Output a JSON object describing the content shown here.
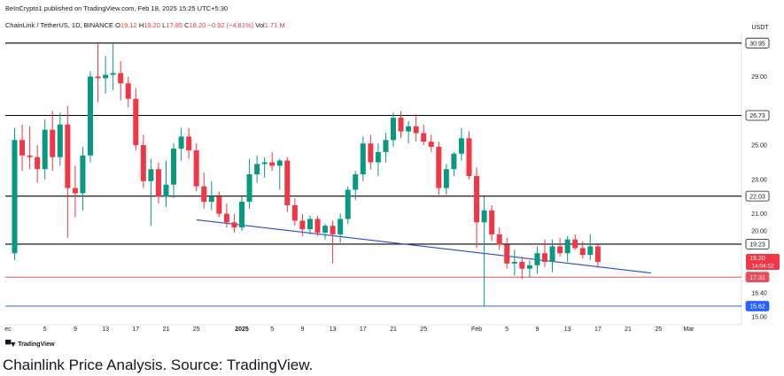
{
  "header": {
    "publish_text": "BeInCrypto1 published on TradingView.com, Feb 18, 2025 15:25 UTC+5:30",
    "symbol": "ChainLink / TetherUS, 1D, BINANCE",
    "o_label": "O",
    "o_value": "19.12",
    "h_label": "H",
    "h_value": "19.20",
    "l_label": "L",
    "l_value": "17.85",
    "c_label": "C",
    "c_value": "18.20",
    "change": "−0.92 (−4.81%)",
    "vol_label": "Vol",
    "vol_value": "1.71 M"
  },
  "currency": "USDT",
  "logo_text": "TradingView",
  "caption": "Chainlink Price Analysis. Source: TradingView.",
  "colors": {
    "up": "#089981",
    "down": "#f23645",
    "level_line": "#000000",
    "support_red": "#e84d5b",
    "support_blue": "#2962ff",
    "trendline": "#2447d8",
    "axis_text": "#131722"
  },
  "chart_data": {
    "type": "candlestick",
    "ylim": [
      15.0,
      31.5
    ],
    "y_ticks": [
      {
        "label": "29.00",
        "value": 29.0
      },
      {
        "label": "25.00",
        "value": 25.0
      },
      {
        "label": "23.00",
        "value": 23.0
      },
      {
        "label": "21.00",
        "value": 21.0
      },
      {
        "label": "20.00",
        "value": 20.0
      },
      {
        "label": "16.40",
        "value": 16.4
      },
      {
        "label": "15.00",
        "value": 15.0
      }
    ],
    "x_ticks": [
      {
        "label": "ec",
        "day": -1,
        "bold": false
      },
      {
        "label": "5",
        "day": 4,
        "bold": false
      },
      {
        "label": "9",
        "day": 8,
        "bold": false
      },
      {
        "label": "13",
        "day": 12,
        "bold": false
      },
      {
        "label": "17",
        "day": 16,
        "bold": false
      },
      {
        "label": "21",
        "day": 20,
        "bold": false
      },
      {
        "label": "25",
        "day": 24,
        "bold": false
      },
      {
        "label": "2025",
        "day": 30,
        "bold": true
      },
      {
        "label": "5",
        "day": 34,
        "bold": false
      },
      {
        "label": "9",
        "day": 38,
        "bold": false
      },
      {
        "label": "13",
        "day": 42,
        "bold": false
      },
      {
        "label": "17",
        "day": 46,
        "bold": false
      },
      {
        "label": "21",
        "day": 50,
        "bold": false
      },
      {
        "label": "25",
        "day": 54,
        "bold": false
      },
      {
        "label": "Feb",
        "day": 61,
        "bold": false
      },
      {
        "label": "5",
        "day": 65,
        "bold": false
      },
      {
        "label": "9",
        "day": 69,
        "bold": false
      },
      {
        "label": "13",
        "day": 73,
        "bold": false
      },
      {
        "label": "17",
        "day": 77,
        "bold": false
      },
      {
        "label": "21",
        "day": 81,
        "bold": false
      },
      {
        "label": "25",
        "day": 85,
        "bold": false
      },
      {
        "label": "Mar",
        "day": 89,
        "bold": false
      }
    ],
    "levels": [
      {
        "name": "level-30-95",
        "label": "30.95",
        "value": 30.95,
        "color": "#000000",
        "tag": "black"
      },
      {
        "name": "level-26-73",
        "label": "26.73",
        "value": 26.73,
        "color": "#000000",
        "tag": "black"
      },
      {
        "name": "level-22-03",
        "label": "22.03",
        "value": 22.03,
        "color": "#000000",
        "tag": "black"
      },
      {
        "name": "level-19-23",
        "label": "19.23",
        "value": 19.23,
        "color": "#000000",
        "tag": "black"
      },
      {
        "name": "level-17-31",
        "label": "17.31",
        "value": 17.31,
        "color": "#e84d5b",
        "tag": "red"
      },
      {
        "name": "level-15-62",
        "label": "15.62",
        "value": 15.62,
        "color": "#2962ff",
        "tag": "blue"
      }
    ],
    "price_tag": {
      "price": "18.20",
      "countdown": "14:04:52",
      "value": 18.2
    },
    "trendline": {
      "start_day": 24,
      "start_value": 20.65,
      "end_day": 84,
      "end_value": 17.55
    },
    "candles": [
      {
        "d": 0,
        "o": 18.7,
        "h": 26.0,
        "l": 18.3,
        "c": 25.3
      },
      {
        "d": 1,
        "o": 25.3,
        "h": 26.2,
        "l": 23.5,
        "c": 24.4
      },
      {
        "d": 2,
        "o": 24.4,
        "h": 26.1,
        "l": 23.6,
        "c": 24.3
      },
      {
        "d": 3,
        "o": 24.3,
        "h": 25.0,
        "l": 22.8,
        "c": 23.6
      },
      {
        "d": 4,
        "o": 23.6,
        "h": 26.5,
        "l": 23.0,
        "c": 25.9
      },
      {
        "d": 5,
        "o": 25.9,
        "h": 27.0,
        "l": 23.5,
        "c": 24.3
      },
      {
        "d": 6,
        "o": 24.3,
        "h": 26.9,
        "l": 23.8,
        "c": 26.2
      },
      {
        "d": 7,
        "o": 26.2,
        "h": 27.3,
        "l": 19.6,
        "c": 22.5
      },
      {
        "d": 8,
        "o": 22.5,
        "h": 23.8,
        "l": 20.8,
        "c": 22.2
      },
      {
        "d": 9,
        "o": 22.2,
        "h": 24.9,
        "l": 21.2,
        "c": 24.4
      },
      {
        "d": 10,
        "o": 24.4,
        "h": 29.3,
        "l": 24.0,
        "c": 29.0
      },
      {
        "d": 11,
        "o": 29.0,
        "h": 30.9,
        "l": 27.5,
        "c": 28.9
      },
      {
        "d": 12,
        "o": 28.9,
        "h": 30.2,
        "l": 28.0,
        "c": 29.1
      },
      {
        "d": 13,
        "o": 29.1,
        "h": 30.9,
        "l": 28.2,
        "c": 29.2
      },
      {
        "d": 14,
        "o": 29.2,
        "h": 29.9,
        "l": 27.6,
        "c": 28.6
      },
      {
        "d": 15,
        "o": 28.6,
        "h": 29.0,
        "l": 27.2,
        "c": 27.7
      },
      {
        "d": 16,
        "o": 27.7,
        "h": 28.3,
        "l": 24.7,
        "c": 25.0
      },
      {
        "d": 17,
        "o": 25.0,
        "h": 25.6,
        "l": 22.5,
        "c": 22.9
      },
      {
        "d": 18,
        "o": 22.9,
        "h": 24.2,
        "l": 20.3,
        "c": 23.6
      },
      {
        "d": 19,
        "o": 23.6,
        "h": 24.0,
        "l": 21.6,
        "c": 22.0
      },
      {
        "d": 20,
        "o": 22.0,
        "h": 24.1,
        "l": 21.4,
        "c": 22.7
      },
      {
        "d": 21,
        "o": 22.7,
        "h": 25.1,
        "l": 21.9,
        "c": 24.8
      },
      {
        "d": 22,
        "o": 24.8,
        "h": 26.0,
        "l": 24.1,
        "c": 25.5
      },
      {
        "d": 23,
        "o": 25.5,
        "h": 26.0,
        "l": 24.2,
        "c": 24.7
      },
      {
        "d": 24,
        "o": 24.7,
        "h": 25.1,
        "l": 22.3,
        "c": 22.6
      },
      {
        "d": 25,
        "o": 22.6,
        "h": 23.4,
        "l": 21.3,
        "c": 21.7
      },
      {
        "d": 26,
        "o": 21.7,
        "h": 22.9,
        "l": 21.2,
        "c": 22.0
      },
      {
        "d": 27,
        "o": 22.0,
        "h": 22.3,
        "l": 20.8,
        "c": 21.0
      },
      {
        "d": 28,
        "o": 21.0,
        "h": 21.6,
        "l": 20.2,
        "c": 20.5
      },
      {
        "d": 29,
        "o": 20.5,
        "h": 21.0,
        "l": 19.9,
        "c": 20.2
      },
      {
        "d": 30,
        "o": 20.2,
        "h": 22.0,
        "l": 20.0,
        "c": 21.7
      },
      {
        "d": 31,
        "o": 21.7,
        "h": 24.2,
        "l": 21.3,
        "c": 23.3
      },
      {
        "d": 32,
        "o": 23.3,
        "h": 24.4,
        "l": 22.8,
        "c": 23.9
      },
      {
        "d": 33,
        "o": 23.9,
        "h": 24.3,
        "l": 23.1,
        "c": 24.0
      },
      {
        "d": 34,
        "o": 24.0,
        "h": 24.6,
        "l": 23.5,
        "c": 23.8
      },
      {
        "d": 35,
        "o": 23.8,
        "h": 24.2,
        "l": 22.4,
        "c": 24.1
      },
      {
        "d": 36,
        "o": 24.1,
        "h": 24.3,
        "l": 21.1,
        "c": 21.5
      },
      {
        "d": 37,
        "o": 21.5,
        "h": 21.9,
        "l": 20.3,
        "c": 20.6
      },
      {
        "d": 38,
        "o": 20.6,
        "h": 21.0,
        "l": 19.7,
        "c": 20.1
      },
      {
        "d": 39,
        "o": 20.1,
        "h": 20.9,
        "l": 19.8,
        "c": 20.7
      },
      {
        "d": 40,
        "o": 20.7,
        "h": 20.9,
        "l": 19.7,
        "c": 19.9
      },
      {
        "d": 41,
        "o": 19.9,
        "h": 20.4,
        "l": 19.5,
        "c": 20.3
      },
      {
        "d": 42,
        "o": 20.3,
        "h": 20.6,
        "l": 18.1,
        "c": 19.8
      },
      {
        "d": 43,
        "o": 19.8,
        "h": 21.0,
        "l": 19.3,
        "c": 20.7
      },
      {
        "d": 44,
        "o": 20.7,
        "h": 22.6,
        "l": 20.4,
        "c": 22.4
      },
      {
        "d": 45,
        "o": 22.4,
        "h": 23.5,
        "l": 21.8,
        "c": 23.3
      },
      {
        "d": 46,
        "o": 23.3,
        "h": 25.5,
        "l": 22.9,
        "c": 25.1
      },
      {
        "d": 47,
        "o": 25.1,
        "h": 25.6,
        "l": 23.6,
        "c": 24.0
      },
      {
        "d": 48,
        "o": 24.0,
        "h": 25.1,
        "l": 23.2,
        "c": 24.6
      },
      {
        "d": 49,
        "o": 24.6,
        "h": 25.7,
        "l": 24.0,
        "c": 25.3
      },
      {
        "d": 50,
        "o": 25.3,
        "h": 26.9,
        "l": 24.9,
        "c": 26.6
      },
      {
        "d": 51,
        "o": 26.6,
        "h": 27.0,
        "l": 25.4,
        "c": 25.8
      },
      {
        "d": 52,
        "o": 25.8,
        "h": 26.4,
        "l": 25.1,
        "c": 26.1
      },
      {
        "d": 53,
        "o": 26.1,
        "h": 26.8,
        "l": 25.2,
        "c": 25.7
      },
      {
        "d": 54,
        "o": 25.7,
        "h": 26.2,
        "l": 25.0,
        "c": 25.2
      },
      {
        "d": 55,
        "o": 25.2,
        "h": 25.6,
        "l": 24.6,
        "c": 24.9
      },
      {
        "d": 56,
        "o": 24.9,
        "h": 25.2,
        "l": 22.1,
        "c": 22.5
      },
      {
        "d": 57,
        "o": 22.5,
        "h": 23.9,
        "l": 22.1,
        "c": 23.6
      },
      {
        "d": 58,
        "o": 23.6,
        "h": 24.6,
        "l": 23.2,
        "c": 24.5
      },
      {
        "d": 59,
        "o": 24.5,
        "h": 26.0,
        "l": 24.1,
        "c": 25.4
      },
      {
        "d": 60,
        "o": 25.4,
        "h": 25.8,
        "l": 23.0,
        "c": 23.2
      },
      {
        "d": 61,
        "o": 23.2,
        "h": 23.7,
        "l": 19.0,
        "c": 20.5
      },
      {
        "d": 62,
        "o": 20.5,
        "h": 22.0,
        "l": 15.6,
        "c": 21.2
      },
      {
        "d": 63,
        "o": 21.2,
        "h": 21.5,
        "l": 19.4,
        "c": 19.8
      },
      {
        "d": 64,
        "o": 19.8,
        "h": 20.2,
        "l": 18.9,
        "c": 19.2
      },
      {
        "d": 65,
        "o": 19.2,
        "h": 19.6,
        "l": 17.8,
        "c": 18.1
      },
      {
        "d": 66,
        "o": 18.1,
        "h": 18.9,
        "l": 17.4,
        "c": 18.2
      },
      {
        "d": 67,
        "o": 18.2,
        "h": 18.5,
        "l": 17.2,
        "c": 17.8
      },
      {
        "d": 68,
        "o": 17.8,
        "h": 18.3,
        "l": 17.3,
        "c": 18.0
      },
      {
        "d": 69,
        "o": 18.0,
        "h": 19.1,
        "l": 17.5,
        "c": 18.7
      },
      {
        "d": 70,
        "o": 18.7,
        "h": 19.5,
        "l": 17.9,
        "c": 18.2
      },
      {
        "d": 71,
        "o": 18.2,
        "h": 19.5,
        "l": 17.6,
        "c": 19.1
      },
      {
        "d": 72,
        "o": 19.1,
        "h": 19.6,
        "l": 18.5,
        "c": 18.7
      },
      {
        "d": 73,
        "o": 18.7,
        "h": 19.7,
        "l": 18.2,
        "c": 19.5
      },
      {
        "d": 74,
        "o": 19.5,
        "h": 19.8,
        "l": 18.9,
        "c": 19.0
      },
      {
        "d": 75,
        "o": 19.0,
        "h": 19.4,
        "l": 18.4,
        "c": 18.6
      },
      {
        "d": 76,
        "o": 18.6,
        "h": 19.8,
        "l": 18.3,
        "c": 19.1
      },
      {
        "d": 77,
        "o": 19.1,
        "h": 19.2,
        "l": 17.85,
        "c": 18.2
      }
    ]
  }
}
